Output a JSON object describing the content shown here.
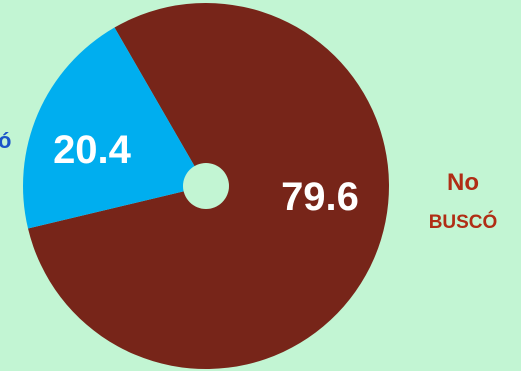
{
  "chart_data": {
    "type": "pie",
    "title": "",
    "slices": [
      {
        "name": "No buscó",
        "value": 79.6,
        "value_label": "79.6",
        "label_line1": "No",
        "label_line2": "buscó",
        "color": "#772519"
      },
      {
        "name": "Buscó",
        "value": 20.4,
        "value_label": "20.4",
        "label_visible": "ó",
        "color": "#00aeef"
      }
    ],
    "donut_hole": true,
    "hole_color": "#c2f5d3",
    "label_colors": {
      "no_busco": "#b02d15",
      "busco": "#1a55c9"
    }
  }
}
